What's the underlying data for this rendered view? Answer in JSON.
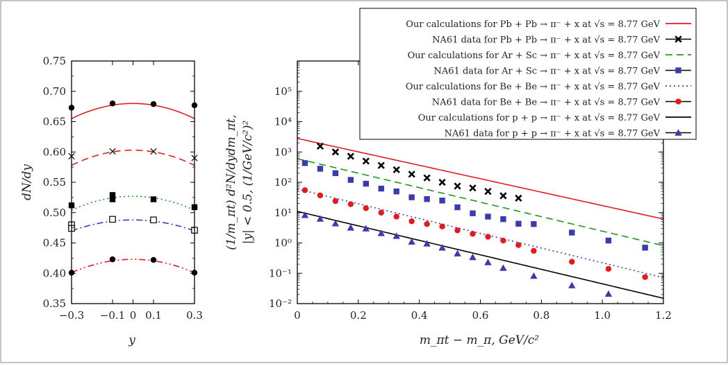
{
  "chart_data": [
    {
      "type": "scatter",
      "xlabel": "y",
      "ylabel": "dN/dy",
      "xlim": [
        -0.3,
        0.3
      ],
      "ylim": [
        0.35,
        0.75
      ],
      "x_ticks": [
        "−0.3",
        "−0.1",
        "0",
        "0.1",
        "0.3"
      ],
      "y_ticks": [
        "0.35",
        "0.40",
        "0.45",
        "0.50",
        "0.55",
        "0.60",
        "0.65",
        "0.70",
        "0.75"
      ],
      "grid": false,
      "series": [
        {
          "color": "#e41a1c",
          "dash": "solid",
          "curve": {
            "center": 0.68,
            "edge": 0.655
          },
          "points": {
            "marker": "circle",
            "x": [
              -0.3,
              -0.1,
              0.1,
              0.3
            ],
            "y": [
              0.673,
              0.68,
              0.679,
              0.677
            ]
          }
        },
        {
          "color": "#e41a1c",
          "dash": "dashed",
          "curve": {
            "center": 0.603,
            "edge": 0.578
          },
          "points": {
            "marker": "cross",
            "x": [
              -0.3,
              -0.1,
              0.1,
              0.3
            ],
            "y": [
              0.593,
              0.601,
              0.601,
              0.59
            ]
          }
        },
        {
          "color": "#1a9a1a",
          "dash": "dotted",
          "curve": {
            "center": 0.527,
            "edge": 0.504
          },
          "points": {
            "marker": "square",
            "x": [
              -0.3,
              -0.1,
              -0.1,
              0.1,
              0.3
            ],
            "y": [
              0.512,
              0.529,
              0.522,
              0.522,
              0.509
            ]
          }
        },
        {
          "color": "#3b3bb0",
          "dash": "dashdot",
          "curve": {
            "center": 0.488,
            "edge": 0.47
          },
          "points": {
            "marker": "open-square",
            "x": [
              -0.3,
              -0.3,
              -0.1,
              0.1,
              0.3
            ],
            "y": [
              0.48,
              0.474,
              0.489,
              0.488,
              0.471
            ]
          }
        },
        {
          "color": "#e41a1c",
          "dash": "dashdotdot",
          "curve": {
            "center": 0.423,
            "edge": 0.401
          },
          "points": {
            "marker": "circle",
            "x": [
              -0.3,
              -0.1,
              0.1,
              0.3
            ],
            "y": [
              0.401,
              0.423,
              0.422,
              0.401
            ]
          }
        }
      ]
    },
    {
      "type": "scatter",
      "xlabel": "m_πt − m_π, GeV/c²",
      "ylabel_line1": "(1/m_πt) d²N/dydm_πt,",
      "ylabel_line2": "|y| < 0.5, (1/GeV/c²)²",
      "xlim": [
        0,
        1.2
      ],
      "ylim": [
        0.01,
        1000000
      ],
      "yscale": "log",
      "x_ticks": [
        "0",
        "0.2",
        "0.4",
        "0.6",
        "0.8",
        "1.0",
        "1.2"
      ],
      "y_ticks": [
        "10⁻²",
        "10⁻¹",
        "10⁰",
        "10¹",
        "10²",
        "10³",
        "10⁴",
        "10⁵"
      ],
      "grid": false,
      "legend_position": "top-right",
      "series": [
        {
          "name": "Our calculations for Pb + Pb → π⁻ + x at √s = 8.77 GeV",
          "kind": "line",
          "color": "#e41a1c",
          "dash": "solid",
          "y0": 2800,
          "slope": -5.1
        },
        {
          "name": "NA61 data for Pb + Pb → π⁻ + x at √s = 8.77 GeV",
          "kind": "points",
          "color": "#000000",
          "marker": "x",
          "x": [
            0.075,
            0.125,
            0.175,
            0.225,
            0.275,
            0.325,
            0.375,
            0.425,
            0.475,
            0.525,
            0.575,
            0.625,
            0.675,
            0.725
          ],
          "y": [
            1550,
            1000,
            720,
            500,
            360,
            260,
            185,
            140,
            100,
            75,
            65,
            50,
            36,
            30
          ]
        },
        {
          "name": "Our calculations for Ar + Sc → π⁻ + x at √s = 8.77 GeV",
          "kind": "line",
          "color": "#1a9a1a",
          "dash": "dashed",
          "y0": 600,
          "slope": -5.5
        },
        {
          "name": "NA61 data for Ar + Sc → π⁻ + x at √s = 8.77 GeV",
          "kind": "points",
          "color": "#3b3bb0",
          "marker": "square",
          "x": [
            0.025,
            0.075,
            0.125,
            0.175,
            0.225,
            0.275,
            0.325,
            0.375,
            0.425,
            0.475,
            0.525,
            0.575,
            0.625,
            0.675,
            0.725,
            0.775,
            0.9,
            1.02,
            1.14
          ],
          "y": [
            430,
            280,
            200,
            120,
            90,
            62,
            50,
            32,
            28,
            25,
            15,
            9.5,
            7.4,
            6.1,
            4.3,
            4.2,
            2.2,
            1.2,
            0.7
          ]
        },
        {
          "name": "Our calculations for Be + Be → π⁻ + x at √s = 8.77 GeV",
          "kind": "line",
          "color": "#3b3bb0",
          "dash": "dotted",
          "y0": 60,
          "slope": -5.6
        },
        {
          "name": "NA61 data for Be + Be → π⁻ + x at √s = 8.77 GeV",
          "kind": "points",
          "color": "#e41a1c",
          "marker": "circle",
          "x": [
            0.025,
            0.075,
            0.125,
            0.175,
            0.225,
            0.275,
            0.325,
            0.375,
            0.425,
            0.475,
            0.525,
            0.575,
            0.625,
            0.675,
            0.725,
            0.775,
            0.9,
            1.02,
            1.14
          ],
          "y": [
            55,
            37,
            24,
            19,
            14,
            10,
            7.4,
            5.2,
            4.2,
            3.5,
            2.6,
            2.0,
            1.6,
            1.2,
            0.85,
            0.55,
            0.24,
            0.14,
            0.075
          ]
        },
        {
          "name": "Our calculations for p + p → π⁻ + x at √s = 8.77 GeV",
          "kind": "line",
          "color": "#000000",
          "dash": "solid",
          "y0": 11,
          "slope": -5.5
        },
        {
          "name": "NA61 data for p + p → π⁻ + x at √s = 8.77 GeV",
          "kind": "points",
          "color": "#3b3bb0",
          "marker": "triangle",
          "x": [
            0.025,
            0.075,
            0.125,
            0.175,
            0.225,
            0.275,
            0.325,
            0.375,
            0.425,
            0.475,
            0.525,
            0.575,
            0.625,
            0.675,
            0.775,
            0.9,
            1.02
          ],
          "y": [
            8.3,
            6.3,
            4.4,
            3.2,
            3.0,
            2.1,
            1.7,
            1.1,
            0.95,
            0.7,
            0.45,
            0.34,
            0.23,
            0.15,
            0.082,
            0.04,
            0.021
          ]
        }
      ]
    }
  ]
}
